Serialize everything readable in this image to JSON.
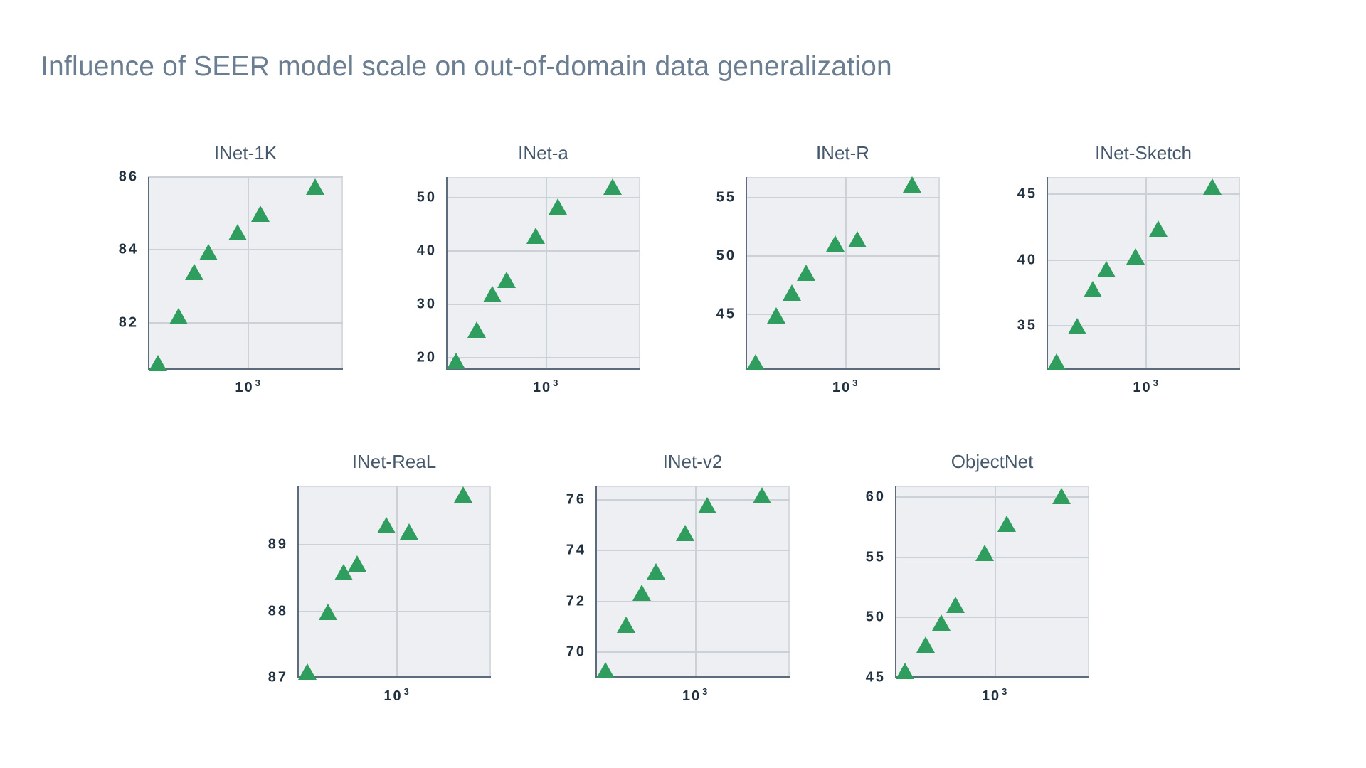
{
  "page": {
    "title": "Influence of SEER model scale on out-of-domain data generalization"
  },
  "colors": {
    "marker_green": "#2e9d5d",
    "main_title": "#6b7d90",
    "plot_title": "#46586c",
    "tick_label": "#22313f",
    "plot_background": "#edeff3",
    "gridline": "#ccd1d7",
    "axis_spine": "#5d6b7c"
  },
  "chart_data": [
    {
      "type": "scatter",
      "title": "INet-1K",
      "marker": "triangle-up",
      "legend": "none",
      "grid": true,
      "x_axis": {
        "scale": "log",
        "tick": {
          "base": "10",
          "exp": "3"
        },
        "tick_frac": 0.515
      },
      "y_ticks": [
        82,
        84,
        86
      ],
      "ylim": [
        80.71,
        86.0
      ],
      "points": [
        {
          "x_frac": 0.051,
          "y": 80.9
        },
        {
          "x_frac": 0.158,
          "y": 82.2
        },
        {
          "x_frac": 0.239,
          "y": 83.4
        },
        {
          "x_frac": 0.31,
          "y": 83.95
        },
        {
          "x_frac": 0.46,
          "y": 84.5
        },
        {
          "x_frac": 0.576,
          "y": 85.0
        },
        {
          "x_frac": 0.856,
          "y": 85.75
        }
      ]
    },
    {
      "type": "scatter",
      "title": "INet-a",
      "marker": "triangle-up",
      "legend": "none",
      "grid": true,
      "x_axis": {
        "scale": "log",
        "tick": {
          "base": "10",
          "exp": "3"
        },
        "tick_frac": 0.515
      },
      "y_ticks": [
        20,
        30,
        40,
        50
      ],
      "ylim": [
        17.7,
        53.9
      ],
      "points": [
        {
          "x_frac": 0.051,
          "y": 19.5
        },
        {
          "x_frac": 0.158,
          "y": 25.3
        },
        {
          "x_frac": 0.239,
          "y": 32.0
        },
        {
          "x_frac": 0.31,
          "y": 34.7
        },
        {
          "x_frac": 0.46,
          "y": 43.0
        },
        {
          "x_frac": 0.576,
          "y": 48.4
        },
        {
          "x_frac": 0.856,
          "y": 52.1
        }
      ]
    },
    {
      "type": "scatter",
      "title": "INet-R",
      "marker": "triangle-up",
      "legend": "none",
      "grid": true,
      "x_axis": {
        "scale": "log",
        "tick": {
          "base": "10",
          "exp": "3"
        },
        "tick_frac": 0.515
      },
      "y_ticks": [
        45,
        50,
        55
      ],
      "ylim": [
        40.2,
        56.8
      ],
      "points": [
        {
          "x_frac": 0.051,
          "y": 40.9
        },
        {
          "x_frac": 0.158,
          "y": 44.9
        },
        {
          "x_frac": 0.239,
          "y": 46.9
        },
        {
          "x_frac": 0.31,
          "y": 48.6
        },
        {
          "x_frac": 0.46,
          "y": 51.1
        },
        {
          "x_frac": 0.576,
          "y": 51.5
        },
        {
          "x_frac": 0.856,
          "y": 56.2
        }
      ]
    },
    {
      "type": "scatter",
      "title": "INet-Sketch",
      "marker": "triangle-up",
      "legend": "none",
      "grid": true,
      "x_axis": {
        "scale": "log",
        "tick": {
          "base": "10",
          "exp": "3"
        },
        "tick_frac": 0.515
      },
      "y_ticks": [
        35,
        40,
        45
      ],
      "ylim": [
        31.65,
        46.3
      ],
      "points": [
        {
          "x_frac": 0.051,
          "y": 32.3
        },
        {
          "x_frac": 0.158,
          "y": 35.0
        },
        {
          "x_frac": 0.239,
          "y": 37.8
        },
        {
          "x_frac": 0.31,
          "y": 39.3
        },
        {
          "x_frac": 0.46,
          "y": 40.3
        },
        {
          "x_frac": 0.576,
          "y": 42.4
        },
        {
          "x_frac": 0.856,
          "y": 45.6
        }
      ]
    },
    {
      "type": "scatter",
      "title": "INet-ReaL",
      "marker": "triangle-up",
      "legend": "none",
      "grid": true,
      "x_axis": {
        "scale": "log",
        "tick": {
          "base": "10",
          "exp": "3"
        },
        "tick_frac": 0.515
      },
      "y_ticks": [
        87,
        88,
        89
      ],
      "ylim": [
        86.99,
        89.89
      ],
      "points": [
        {
          "x_frac": 0.051,
          "y": 87.1
        },
        {
          "x_frac": 0.158,
          "y": 88.0
        },
        {
          "x_frac": 0.239,
          "y": 88.6
        },
        {
          "x_frac": 0.31,
          "y": 88.72
        },
        {
          "x_frac": 0.46,
          "y": 89.3
        },
        {
          "x_frac": 0.576,
          "y": 89.2
        },
        {
          "x_frac": 0.856,
          "y": 89.76
        }
      ]
    },
    {
      "type": "scatter",
      "title": "INet-v2",
      "marker": "triangle-up",
      "legend": "none",
      "grid": true,
      "x_axis": {
        "scale": "log",
        "tick": {
          "base": "10",
          "exp": "3"
        },
        "tick_frac": 0.515
      },
      "y_ticks": [
        70,
        72,
        74,
        76
      ],
      "ylim": [
        68.96,
        76.56
      ],
      "points": [
        {
          "x_frac": 0.051,
          "y": 69.3
        },
        {
          "x_frac": 0.158,
          "y": 71.1
        },
        {
          "x_frac": 0.239,
          "y": 72.35
        },
        {
          "x_frac": 0.31,
          "y": 73.2
        },
        {
          "x_frac": 0.46,
          "y": 74.7
        },
        {
          "x_frac": 0.576,
          "y": 75.8
        },
        {
          "x_frac": 0.856,
          "y": 76.2
        }
      ]
    },
    {
      "type": "scatter",
      "title": "ObjectNet",
      "marker": "triangle-up",
      "legend": "none",
      "grid": true,
      "x_axis": {
        "scale": "log",
        "tick": {
          "base": "10",
          "exp": "3"
        },
        "tick_frac": 0.515
      },
      "y_ticks": [
        45,
        50,
        55,
        60
      ],
      "ylim": [
        44.94,
        60.95
      ],
      "points": [
        {
          "x_frac": 0.051,
          "y": 45.6
        },
        {
          "x_frac": 0.158,
          "y": 47.8
        },
        {
          "x_frac": 0.239,
          "y": 49.6
        },
        {
          "x_frac": 0.31,
          "y": 51.1
        },
        {
          "x_frac": 0.46,
          "y": 55.4
        },
        {
          "x_frac": 0.576,
          "y": 57.8
        },
        {
          "x_frac": 0.856,
          "y": 60.1
        }
      ]
    }
  ]
}
